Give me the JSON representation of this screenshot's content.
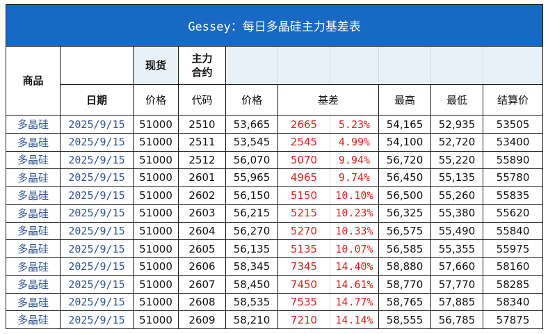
{
  "title": "Gessey：每日多晶硅主力基差表",
  "headers": {
    "commodity": "商品",
    "spot": "现货",
    "main_contract": "主力\n合约",
    "date": "日期",
    "spot_price": "价格",
    "code": "代码",
    "price": "价格",
    "basis": "基差",
    "high": "最高",
    "low": "最低",
    "settle": "结算价"
  },
  "rows": [
    {
      "product": "多晶硅",
      "date": "2025/9/15",
      "spot": "51000",
      "code": "2510",
      "price": "53,665",
      "basis": "2665",
      "pct": "5.23%",
      "high": "54,165",
      "low": "52,935",
      "settle": "53505"
    },
    {
      "product": "多晶硅",
      "date": "2025/9/15",
      "spot": "51000",
      "code": "2511",
      "price": "53,545",
      "basis": "2545",
      "pct": "4.99%",
      "high": "54,100",
      "low": "52,720",
      "settle": "53400"
    },
    {
      "product": "多晶硅",
      "date": "2025/9/15",
      "spot": "51000",
      "code": "2512",
      "price": "56,070",
      "basis": "5070",
      "pct": "9.94%",
      "high": "56,720",
      "low": "55,220",
      "settle": "55890"
    },
    {
      "product": "多晶硅",
      "date": "2025/9/15",
      "spot": "51000",
      "code": "2601",
      "price": "55,965",
      "basis": "4965",
      "pct": "9.74%",
      "high": "56,450",
      "low": "55,135",
      "settle": "55780"
    },
    {
      "product": "多晶硅",
      "date": "2025/9/15",
      "spot": "51000",
      "code": "2602",
      "price": "56,150",
      "basis": "5150",
      "pct": "10.10%",
      "high": "56,500",
      "low": "55,260",
      "settle": "55835"
    },
    {
      "product": "多晶硅",
      "date": "2025/9/15",
      "spot": "51000",
      "code": "2603",
      "price": "56,215",
      "basis": "5215",
      "pct": "10.23%",
      "high": "56,325",
      "low": "55,380",
      "settle": "55620"
    },
    {
      "product": "多晶硅",
      "date": "2025/9/15",
      "spot": "51000",
      "code": "2604",
      "price": "56,270",
      "basis": "5270",
      "pct": "10.33%",
      "high": "56,575",
      "low": "55,490",
      "settle": "55840"
    },
    {
      "product": "多晶硅",
      "date": "2025/9/15",
      "spot": "51000",
      "code": "2605",
      "price": "56,135",
      "basis": "5135",
      "pct": "10.07%",
      "high": "56,585",
      "low": "55,355",
      "settle": "55975"
    },
    {
      "product": "多晶硅",
      "date": "2025/9/15",
      "spot": "51000",
      "code": "2606",
      "price": "58,345",
      "basis": "7345",
      "pct": "14.40%",
      "high": "58,880",
      "low": "57,660",
      "settle": "58160"
    },
    {
      "product": "多晶硅",
      "date": "2025/9/15",
      "spot": "51000",
      "code": "2607",
      "price": "58,450",
      "basis": "7450",
      "pct": "14.61%",
      "high": "58,770",
      "low": "57,770",
      "settle": "58285"
    },
    {
      "product": "多晶硅",
      "date": "2025/9/15",
      "spot": "51000",
      "code": "2608",
      "price": "58,535",
      "basis": "7535",
      "pct": "14.77%",
      "high": "58,765",
      "low": "57,885",
      "settle": "58340"
    },
    {
      "product": "多晶硅",
      "date": "2025/9/15",
      "spot": "51000",
      "code": "2609",
      "price": "58,210",
      "basis": "7210",
      "pct": "14.14%",
      "high": "58,555",
      "low": "56,785",
      "settle": "57875"
    }
  ]
}
